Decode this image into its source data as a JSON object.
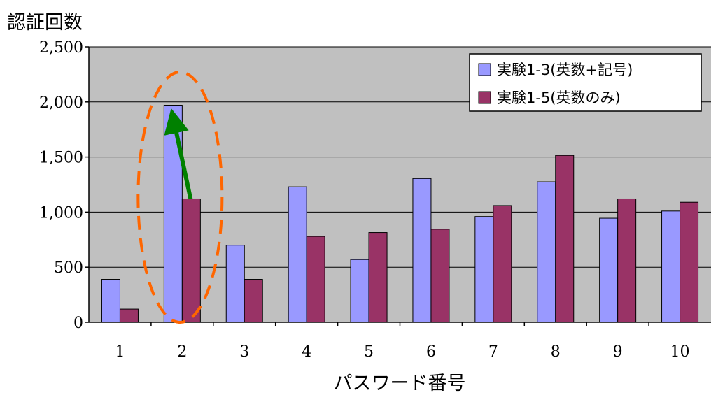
{
  "chart_data": {
    "type": "bar",
    "ylabel": "認証回数",
    "xlabel": "パスワード番号",
    "categories": [
      "1",
      "2",
      "3",
      "4",
      "5",
      "6",
      "7",
      "8",
      "9",
      "10"
    ],
    "yticks": [
      "0",
      "500",
      "1,000",
      "1,500",
      "2,000",
      "2,500"
    ],
    "ylim": [
      0,
      2500
    ],
    "grid": true,
    "legend_position": "top-right",
    "series": [
      {
        "name": "実験1-3(英数+記号)",
        "color": "#9999ff",
        "values": [
          390,
          1970,
          700,
          1230,
          570,
          1305,
          960,
          1275,
          945,
          1010
        ]
      },
      {
        "name": "実験1-5(英数のみ)",
        "color": "#993366",
        "values": [
          120,
          1120,
          390,
          780,
          815,
          845,
          1060,
          1515,
          1120,
          1090
        ]
      }
    ],
    "annotations": [
      {
        "type": "ellipse",
        "category": "2",
        "color": "#ff6600",
        "style": "dashed"
      },
      {
        "type": "arrow",
        "category": "2",
        "from_value": 1120,
        "to_value": 1970,
        "color": "#008000"
      }
    ]
  }
}
